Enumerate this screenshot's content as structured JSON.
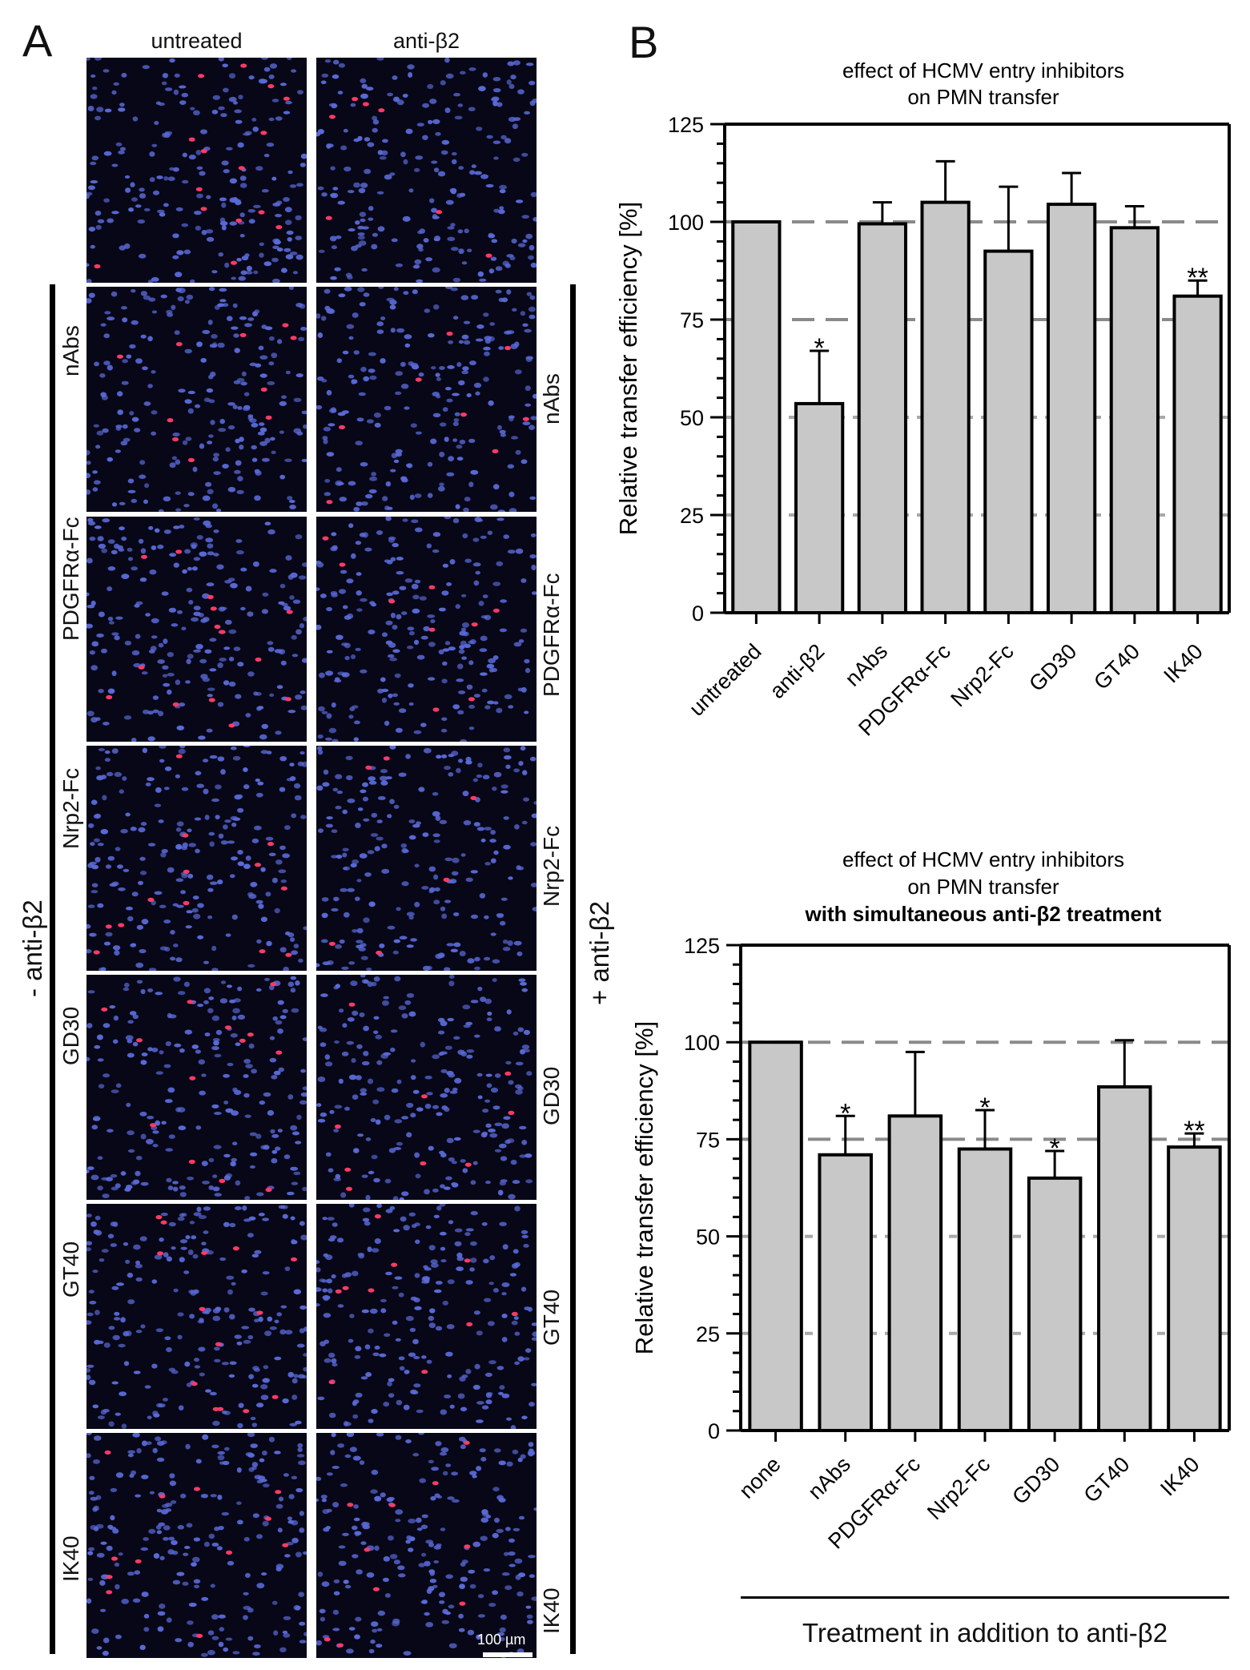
{
  "panel_a": {
    "letter": "A",
    "columns": [
      "untreated",
      "anti-β2"
    ],
    "rows": [
      "nAbs",
      "PDGFRα-Fc",
      "Nrp2-Fc",
      "GD30",
      "GT40",
      "IK40"
    ],
    "left_group_label": "- anti-β2",
    "right_group_label": "+ anti-β2",
    "scale_bar_label": "100 µm",
    "colors": {
      "nuclei": "#5a6ad8",
      "infected": "#ff3a66",
      "background": "#070717"
    }
  },
  "panel_b": {
    "letter": "B"
  },
  "chart_data": [
    {
      "type": "bar",
      "title": "effect of HCMV entry inhibitors on PMN transfer",
      "title_lines": [
        "effect of HCMV entry inhibitors",
        "on PMN transfer"
      ],
      "ylabel": "Relative transfer efficiency [%]",
      "xlabel": "",
      "categories": [
        "untreated",
        "anti-β2",
        "nAbs",
        "PDGFRα-Fc",
        "Nrp2-Fc",
        "GD30",
        "GT40",
        "IK40"
      ],
      "values": [
        100,
        53.5,
        99.5,
        105,
        92.5,
        104.5,
        98.5,
        81
      ],
      "errors": [
        0,
        13.5,
        5.5,
        10.5,
        16.5,
        8,
        5.5,
        4
      ],
      "significance": [
        "",
        "*",
        "",
        "",
        "",
        "",
        "",
        "**"
      ],
      "ylim": [
        0,
        125
      ],
      "yticks": [
        0,
        25,
        50,
        75,
        100,
        125
      ],
      "reference_lines": [
        25,
        50,
        75,
        100
      ],
      "bar_color": "#c8c8c8",
      "grid": false
    },
    {
      "type": "bar",
      "title": "effect of HCMV entry inhibitors on PMN transfer with simultaneous anti-β2 treatment",
      "title_lines": [
        "effect of HCMV entry inhibitors",
        "on PMN transfer",
        "with simultaneous anti-β2 treatment"
      ],
      "ylabel": "Relative transfer efficiency [%]",
      "xlabel": "Treatment in addition to anti-β2",
      "categories": [
        "none",
        "nAbs",
        "PDGFRα-Fc",
        "Nrp2-Fc",
        "GD30",
        "GT40",
        "IK40"
      ],
      "values": [
        100,
        71,
        81,
        72.5,
        65,
        88.5,
        73
      ],
      "errors": [
        0,
        10,
        16.5,
        10,
        7,
        12,
        3.5
      ],
      "significance": [
        "",
        "*",
        "",
        "*",
        "*",
        "",
        "**"
      ],
      "ylim": [
        0,
        125
      ],
      "yticks": [
        0,
        25,
        50,
        75,
        100,
        125
      ],
      "reference_lines": [
        25,
        50,
        75,
        100
      ],
      "bar_color": "#c8c8c8",
      "grid": false
    }
  ]
}
